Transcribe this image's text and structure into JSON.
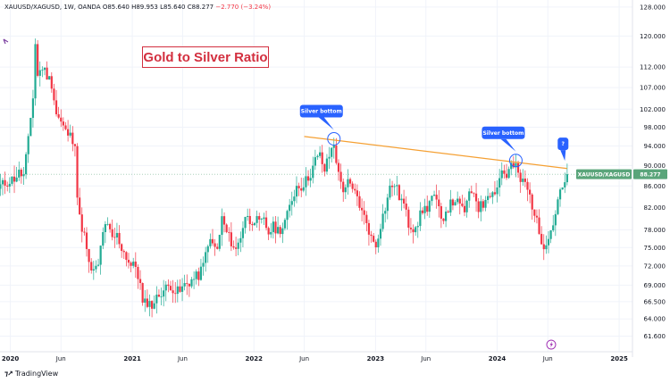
{
  "header": {
    "symbol": "XAUUSD/XAGUSD, 1W, OANDA",
    "open": "O85.640",
    "high": "H89.953",
    "low": "L85.640",
    "close": "C88.277",
    "change": "−2.770 (−3.24%)"
  },
  "title": "Gold to Silver Ratio",
  "price_tag": {
    "label": "XAUUSD/XAGUSD",
    "value": "88.277"
  },
  "annotations": [
    {
      "text": "Silver bottom",
      "date": "2022-08-29",
      "value": 95.5
    },
    {
      "text": "Silver bottom",
      "date": "2024-02-26",
      "value": 91.0
    },
    {
      "text": "?",
      "date": "2024-07-22",
      "value": 89.5
    }
  ],
  "footer": {
    "brand": "TradingView"
  },
  "colors": {
    "up": "#22ab94",
    "down": "#f23645",
    "trendline": "#f5a033",
    "callout": "#2962ff",
    "tag": "#5aa57a"
  },
  "chart_data": {
    "type": "candlestick",
    "title": "Gold to Silver Ratio",
    "series_name": "XAUUSD/XAGUSD",
    "interval": "1W",
    "scale": "log",
    "ylim": [
      59.5,
      130
    ],
    "xlim": [
      "2019-12-01",
      "2025-02-10"
    ],
    "y_ticks": [
      "128.000",
      "120.000",
      "112.000",
      "107.000",
      "102.000",
      "98.000",
      "94.000",
      "90.000",
      "86.000",
      "82.000",
      "78.000",
      "75.000",
      "72.000",
      "69.000",
      "66.500",
      "64.000",
      "61.600"
    ],
    "x_ticks": [
      {
        "label": "2020",
        "date": "2020-01-01",
        "year": true
      },
      {
        "label": "Jun",
        "date": "2020-06-01",
        "year": false
      },
      {
        "label": "2021",
        "date": "2021-01-01",
        "year": true
      },
      {
        "label": "Jun",
        "date": "2021-06-01",
        "year": false
      },
      {
        "label": "2022",
        "date": "2022-01-01",
        "year": true
      },
      {
        "label": "Jun",
        "date": "2022-06-01",
        "year": false
      },
      {
        "label": "2023",
        "date": "2023-01-01",
        "year": true
      },
      {
        "label": "Jun",
        "date": "2023-06-01",
        "year": false
      },
      {
        "label": "2024",
        "date": "2024-01-01",
        "year": true
      },
      {
        "label": "Jun",
        "date": "2024-06-01",
        "year": false
      },
      {
        "label": "2025",
        "date": "2025-01-01",
        "year": true
      }
    ],
    "trendline": {
      "start": {
        "date": "2022-06-01",
        "value": 96.0
      },
      "end": {
        "date": "2024-07-29",
        "value": 89.4
      }
    },
    "last_close": 88.277,
    "closes": [
      {
        "date": "2019-12-02",
        "close": 86.0
      },
      {
        "date": "2019-12-16",
        "close": 86.5
      },
      {
        "date": "2019-12-30",
        "close": 87.0
      },
      {
        "date": "2020-01-13",
        "close": 87.5
      },
      {
        "date": "2020-01-27",
        "close": 88.5
      },
      {
        "date": "2020-02-10",
        "close": 88.0
      },
      {
        "date": "2020-02-24",
        "close": 95.0
      },
      {
        "date": "2020-03-09",
        "close": 105.0
      },
      {
        "date": "2020-03-16",
        "close": 118.0
      },
      {
        "date": "2020-03-23",
        "close": 110.0
      },
      {
        "date": "2020-04-06",
        "close": 112.0
      },
      {
        "date": "2020-04-20",
        "close": 110.0
      },
      {
        "date": "2020-05-04",
        "close": 108.0
      },
      {
        "date": "2020-05-18",
        "close": 101.0
      },
      {
        "date": "2020-06-01",
        "close": 99.0
      },
      {
        "date": "2020-06-15",
        "close": 97.0
      },
      {
        "date": "2020-06-29",
        "close": 96.0
      },
      {
        "date": "2020-07-13",
        "close": 95.0
      },
      {
        "date": "2020-07-20",
        "close": 84.0
      },
      {
        "date": "2020-07-27",
        "close": 80.0
      },
      {
        "date": "2020-08-10",
        "close": 77.0
      },
      {
        "date": "2020-08-24",
        "close": 72.0
      },
      {
        "date": "2020-09-07",
        "close": 71.0
      },
      {
        "date": "2020-09-21",
        "close": 72.0
      },
      {
        "date": "2020-10-05",
        "close": 78.0
      },
      {
        "date": "2020-10-19",
        "close": 78.5
      },
      {
        "date": "2020-11-02",
        "close": 76.5
      },
      {
        "date": "2020-11-16",
        "close": 77.0
      },
      {
        "date": "2020-11-30",
        "close": 75.0
      },
      {
        "date": "2020-12-14",
        "close": 73.5
      },
      {
        "date": "2020-12-28",
        "close": 72.0
      },
      {
        "date": "2021-01-11",
        "close": 72.0
      },
      {
        "date": "2021-01-25",
        "close": 69.0
      },
      {
        "date": "2021-02-01",
        "close": 66.0
      },
      {
        "date": "2021-02-15",
        "close": 66.5
      },
      {
        "date": "2021-03-01",
        "close": 66.0
      },
      {
        "date": "2021-03-15",
        "close": 67.0
      },
      {
        "date": "2021-03-29",
        "close": 68.0
      },
      {
        "date": "2021-04-12",
        "close": 68.5
      },
      {
        "date": "2021-04-26",
        "close": 69.0
      },
      {
        "date": "2021-05-10",
        "close": 68.0
      },
      {
        "date": "2021-05-24",
        "close": 68.0
      },
      {
        "date": "2021-06-07",
        "close": 69.0
      },
      {
        "date": "2021-06-21",
        "close": 69.5
      },
      {
        "date": "2021-07-05",
        "close": 70.0
      },
      {
        "date": "2021-07-19",
        "close": 70.5
      },
      {
        "date": "2021-08-02",
        "close": 72.0
      },
      {
        "date": "2021-08-16",
        "close": 76.0
      },
      {
        "date": "2021-08-30",
        "close": 75.5
      },
      {
        "date": "2021-09-13",
        "close": 74.5
      },
      {
        "date": "2021-09-27",
        "close": 80.0
      },
      {
        "date": "2021-10-11",
        "close": 77.5
      },
      {
        "date": "2021-10-25",
        "close": 76.0
      },
      {
        "date": "2021-11-08",
        "close": 74.5
      },
      {
        "date": "2021-11-22",
        "close": 77.0
      },
      {
        "date": "2021-12-06",
        "close": 80.5
      },
      {
        "date": "2021-12-20",
        "close": 79.5
      },
      {
        "date": "2022-01-03",
        "close": 80.0
      },
      {
        "date": "2022-01-17",
        "close": 79.0
      },
      {
        "date": "2022-01-31",
        "close": 79.5
      },
      {
        "date": "2022-02-14",
        "close": 77.5
      },
      {
        "date": "2022-02-28",
        "close": 78.5
      },
      {
        "date": "2022-03-14",
        "close": 78.0
      },
      {
        "date": "2022-03-28",
        "close": 78.5
      },
      {
        "date": "2022-04-11",
        "close": 80.5
      },
      {
        "date": "2022-04-25",
        "close": 83.5
      },
      {
        "date": "2022-05-09",
        "close": 86.0
      },
      {
        "date": "2022-05-23",
        "close": 86.0
      },
      {
        "date": "2022-06-06",
        "close": 87.0
      },
      {
        "date": "2022-06-20",
        "close": 88.5
      },
      {
        "date": "2022-07-04",
        "close": 91.0
      },
      {
        "date": "2022-07-18",
        "close": 92.0
      },
      {
        "date": "2022-08-01",
        "close": 89.0
      },
      {
        "date": "2022-08-15",
        "close": 92.0
      },
      {
        "date": "2022-08-29",
        "close": 94.5
      },
      {
        "date": "2022-09-12",
        "close": 88.0
      },
      {
        "date": "2022-09-26",
        "close": 85.5
      },
      {
        "date": "2022-10-10",
        "close": 86.5
      },
      {
        "date": "2022-10-24",
        "close": 85.0
      },
      {
        "date": "2022-11-07",
        "close": 84.0
      },
      {
        "date": "2022-11-21",
        "close": 81.0
      },
      {
        "date": "2022-12-05",
        "close": 79.5
      },
      {
        "date": "2022-12-19",
        "close": 76.5
      },
      {
        "date": "2023-01-02",
        "close": 75.5
      },
      {
        "date": "2023-01-16",
        "close": 79.0
      },
      {
        "date": "2023-01-30",
        "close": 82.0
      },
      {
        "date": "2023-02-13",
        "close": 85.5
      },
      {
        "date": "2023-02-27",
        "close": 86.5
      },
      {
        "date": "2023-03-13",
        "close": 84.0
      },
      {
        "date": "2023-03-27",
        "close": 82.5
      },
      {
        "date": "2023-04-10",
        "close": 79.0
      },
      {
        "date": "2023-04-24",
        "close": 78.5
      },
      {
        "date": "2023-05-08",
        "close": 79.5
      },
      {
        "date": "2023-05-22",
        "close": 81.5
      },
      {
        "date": "2023-06-05",
        "close": 82.0
      },
      {
        "date": "2023-06-19",
        "close": 84.0
      },
      {
        "date": "2023-07-03",
        "close": 83.0
      },
      {
        "date": "2023-07-17",
        "close": 79.5
      },
      {
        "date": "2023-07-31",
        "close": 81.5
      },
      {
        "date": "2023-08-14",
        "close": 82.5
      },
      {
        "date": "2023-08-28",
        "close": 83.5
      },
      {
        "date": "2023-09-11",
        "close": 82.0
      },
      {
        "date": "2023-09-25",
        "close": 81.5
      },
      {
        "date": "2023-10-09",
        "close": 84.0
      },
      {
        "date": "2023-10-23",
        "close": 85.0
      },
      {
        "date": "2023-11-06",
        "close": 82.0
      },
      {
        "date": "2023-11-20",
        "close": 82.5
      },
      {
        "date": "2023-12-04",
        "close": 85.0
      },
      {
        "date": "2023-12-18",
        "close": 84.5
      },
      {
        "date": "2024-01-01",
        "close": 86.0
      },
      {
        "date": "2024-01-15",
        "close": 89.0
      },
      {
        "date": "2024-01-29",
        "close": 88.0
      },
      {
        "date": "2024-02-12",
        "close": 90.0
      },
      {
        "date": "2024-02-26",
        "close": 89.5
      },
      {
        "date": "2024-03-11",
        "close": 87.0
      },
      {
        "date": "2024-03-25",
        "close": 86.5
      },
      {
        "date": "2024-04-08",
        "close": 84.0
      },
      {
        "date": "2024-04-22",
        "close": 81.0
      },
      {
        "date": "2024-05-06",
        "close": 77.5
      },
      {
        "date": "2024-05-20",
        "close": 75.5
      },
      {
        "date": "2024-06-03",
        "close": 77.0
      },
      {
        "date": "2024-06-17",
        "close": 79.0
      },
      {
        "date": "2024-07-01",
        "close": 83.5
      },
      {
        "date": "2024-07-15",
        "close": 85.5
      },
      {
        "date": "2024-07-22",
        "close": 86.5
      },
      {
        "date": "2024-07-29",
        "close": 88.3
      }
    ]
  }
}
